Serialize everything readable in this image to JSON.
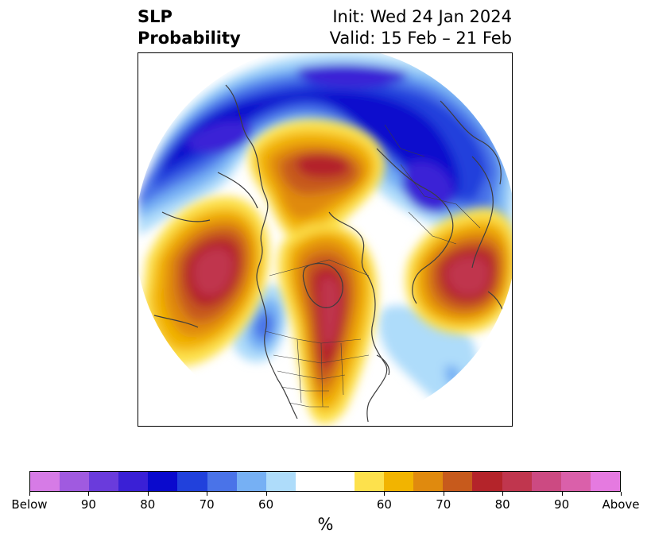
{
  "header": {
    "title_line1": "SLP",
    "title_line2": "Probability",
    "init": "Init: Wed 24 Jan 2024",
    "valid": "Valid: 15 Feb – 21 Feb"
  },
  "map": {
    "projection": "north-polar-stereographic",
    "features": [
      "coastlines",
      "country-borders",
      "state-borders"
    ]
  },
  "colorbar": {
    "label": "%",
    "segments": [
      {
        "color": "#d67be6",
        "category": "below"
      },
      {
        "color": "#a05ae0",
        "category": "below"
      },
      {
        "color": "#6a3bdc",
        "category": "below"
      },
      {
        "color": "#3a20d6",
        "category": "below"
      },
      {
        "color": "#0a0acd",
        "category": "below"
      },
      {
        "color": "#2141dc",
        "category": "below"
      },
      {
        "color": "#4a73e8",
        "category": "below"
      },
      {
        "color": "#76b0f4",
        "category": "below"
      },
      {
        "color": "#aedcfa",
        "category": "below"
      },
      {
        "color": "#ffffff",
        "category": "neutral"
      },
      {
        "color": "#ffffff",
        "category": "neutral"
      },
      {
        "color": "#fde14c",
        "category": "above"
      },
      {
        "color": "#f2b400",
        "category": "above"
      },
      {
        "color": "#e08a0e",
        "category": "above"
      },
      {
        "color": "#c75a1c",
        "category": "above"
      },
      {
        "color": "#b4242a",
        "category": "above"
      },
      {
        "color": "#c0364e",
        "category": "above"
      },
      {
        "color": "#cc4a82",
        "category": "above"
      },
      {
        "color": "#da60aa",
        "category": "above"
      },
      {
        "color": "#e57ae0",
        "category": "above"
      }
    ],
    "ticks": [
      {
        "label": "Below",
        "frac": 0.0
      },
      {
        "label": "90",
        "frac": 0.1
      },
      {
        "label": "80",
        "frac": 0.2
      },
      {
        "label": "70",
        "frac": 0.3
      },
      {
        "label": "60",
        "frac": 0.4
      },
      {
        "label": "60",
        "frac": 0.6
      },
      {
        "label": "70",
        "frac": 0.7
      },
      {
        "label": "80",
        "frac": 0.8
      },
      {
        "label": "90",
        "frac": 0.9
      },
      {
        "label": "Above",
        "frac": 1.0
      }
    ]
  }
}
